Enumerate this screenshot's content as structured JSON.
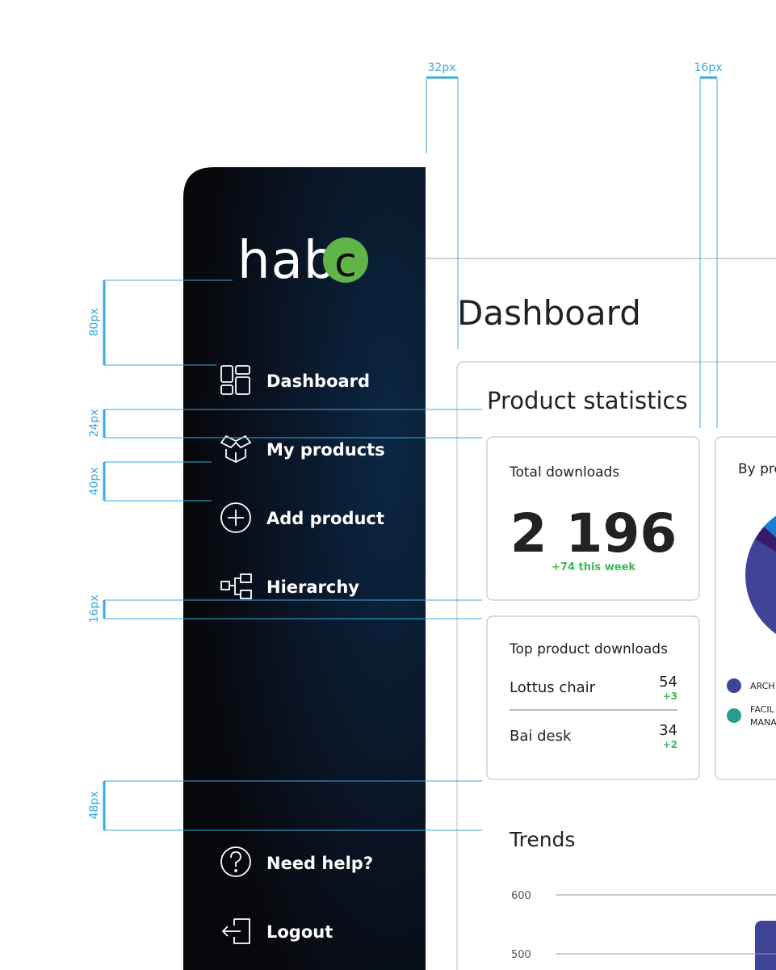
{
  "annotations": {
    "top": [
      "32px",
      "16px"
    ],
    "left": [
      "80px",
      "24px",
      "40px",
      "16px",
      "48px"
    ]
  },
  "sidebar": {
    "logo": {
      "text": "habi",
      "mark": "c"
    },
    "nav": [
      "Dashboard",
      "My products",
      "Add product",
      "Hierarchy"
    ],
    "footer": [
      "Need help?",
      "Logout"
    ]
  },
  "main": {
    "title": "Dashboard",
    "section": "Product statistics",
    "total_downloads": {
      "label": "Total downloads",
      "value": "2 196",
      "change": "+74 this week"
    },
    "top_products": {
      "label": "Top product downloads",
      "rows": [
        {
          "name": "Lottus chair",
          "count": 54,
          "change": "+3"
        },
        {
          "name": "Bai desk",
          "count": 34,
          "change": "+2"
        }
      ]
    },
    "by_product": {
      "label": "By pro",
      "legend": [
        [
          "ARCH"
        ],
        [
          "FACIL",
          "MANA"
        ]
      ]
    },
    "trends": {
      "title": "Trends",
      "ticks": [
        600,
        500
      ]
    }
  }
}
